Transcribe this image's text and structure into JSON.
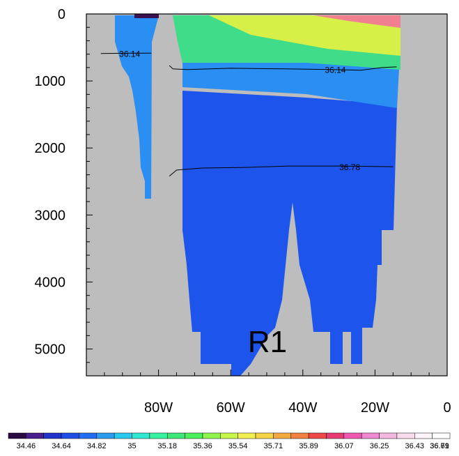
{
  "chart_data": {
    "type": "heatmap",
    "title": "",
    "xlabel": "",
    "ylabel": "",
    "x_axis": {
      "range": [
        -100,
        0
      ],
      "reversed_labels": true,
      "ticks": [
        {
          "value": -80,
          "label": "80W"
        },
        {
          "value": -60,
          "label": "60W"
        },
        {
          "value": -40,
          "label": "40W"
        },
        {
          "value": -20,
          "label": "20W"
        },
        {
          "value": 0,
          "label": "0"
        }
      ]
    },
    "y_axis": {
      "range": [
        0,
        5400
      ],
      "inverted": true,
      "ticks": [
        {
          "value": 0,
          "label": "0"
        },
        {
          "value": 1000,
          "label": "1000"
        },
        {
          "value": 2000,
          "label": "2000"
        },
        {
          "value": 3000,
          "label": "3000"
        },
        {
          "value": 4000,
          "label": "4000"
        },
        {
          "value": 5000,
          "label": "5000"
        }
      ]
    },
    "section_label": "R1",
    "colorbar": {
      "labels": [
        "34.46",
        "34.64",
        "34.82",
        "35",
        "35.18",
        "35.36",
        "35.54",
        "35.71",
        "35.89",
        "36.07",
        "36.25",
        "36.43",
        "36.61",
        "36.79"
      ],
      "colors": [
        "#2a0a40",
        "#4a1d8c",
        "#2233cc",
        "#1d4fe6",
        "#1f6ff0",
        "#2a9bef",
        "#28c8ef",
        "#2ee8d2",
        "#36f2a2",
        "#3de878",
        "#4bf05a",
        "#8cf44a",
        "#c8f548",
        "#f2f050",
        "#f5d445",
        "#f4a840",
        "#f28040",
        "#ee4848",
        "#e83a72",
        "#f058b0",
        "#f08ad0",
        "#f4b8e0",
        "#f8dcee",
        "#fff4fa",
        "#ffffff"
      ]
    },
    "contours": [
      {
        "label": "36.14",
        "label_positions": [
          [
            -88,
            600
          ],
          [
            -31,
            840
          ]
        ]
      },
      {
        "label": "36.78",
        "label_positions": [
          [
            -27,
            2290
          ]
        ]
      }
    ]
  }
}
